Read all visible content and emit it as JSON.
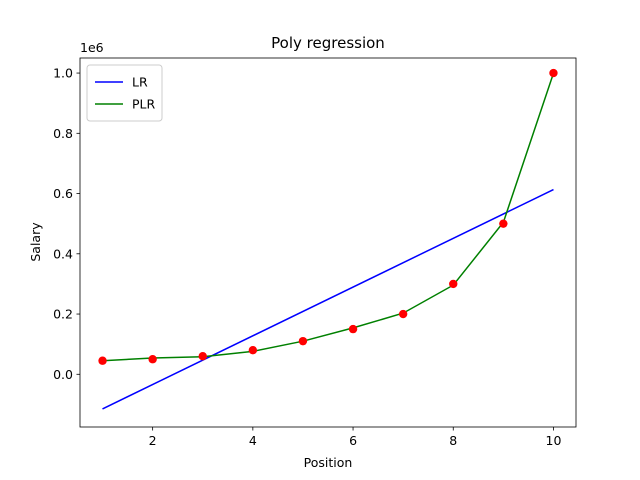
{
  "chart_data": {
    "type": "line",
    "title": "Poly regression",
    "xlabel": "Position",
    "ylabel": "Salary",
    "y_offset_label": "1e6",
    "xlim": [
      0.55,
      10.45
    ],
    "ylim": [
      -0.175,
      1.05
    ],
    "x_ticks": [
      2,
      4,
      6,
      8,
      10
    ],
    "y_ticks": [
      0.0,
      0.2,
      0.4,
      0.6,
      0.8,
      1.0
    ],
    "y_tick_labels": [
      "0.0",
      "0.2",
      "0.4",
      "0.6",
      "0.8",
      "1.0"
    ],
    "legend_position": "top-left",
    "scatter": {
      "color": "#ff0000",
      "x": [
        1,
        2,
        3,
        4,
        5,
        6,
        7,
        8,
        9,
        10
      ],
      "y": [
        0.045,
        0.05,
        0.06,
        0.08,
        0.11,
        0.15,
        0.2,
        0.3,
        0.5,
        1.0
      ]
    },
    "series": [
      {
        "name": "LR",
        "color": "#0000ff",
        "x": [
          1,
          10
        ],
        "y": [
          -0.115,
          0.613
        ]
      },
      {
        "name": "PLR",
        "color": "#008000",
        "x": [
          1,
          2,
          3,
          4,
          5,
          6,
          7,
          8,
          9,
          10
        ],
        "y": [
          0.045,
          0.054,
          0.058,
          0.076,
          0.11,
          0.154,
          0.203,
          0.296,
          0.505,
          1.0
        ]
      }
    ]
  }
}
